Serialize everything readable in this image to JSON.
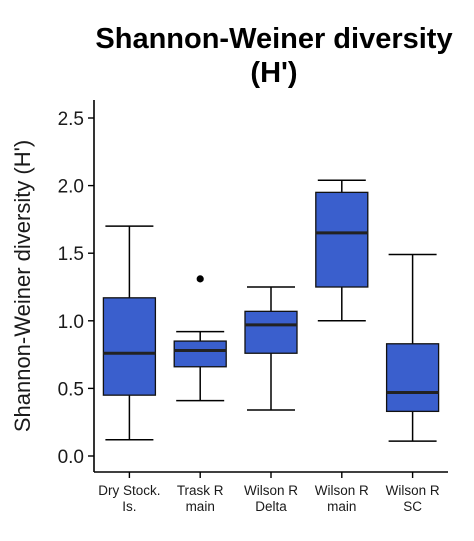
{
  "chart_data": {
    "type": "box",
    "title_lines": [
      "Shannon-Weiner diversity",
      "(H')"
    ],
    "ylabel": "Shannon-Weiner diversity (H')",
    "xlabel": "",
    "ylim": [
      0,
      2.5
    ],
    "yticks": [
      "0.0",
      "0.5",
      "1.0",
      "1.5",
      "2.0",
      "2.5"
    ],
    "box_color": "#3a5fcd",
    "categories": [
      {
        "label_lines": [
          "Dry Stock.",
          "Is."
        ],
        "min": 0.12,
        "q1": 0.45,
        "median": 0.76,
        "q3": 1.17,
        "max": 1.7,
        "outliers": []
      },
      {
        "label_lines": [
          "Trask R",
          "main"
        ],
        "min": 0.41,
        "q1": 0.66,
        "median": 0.78,
        "q3": 0.85,
        "max": 0.92,
        "outliers": [
          1.31
        ]
      },
      {
        "label_lines": [
          "Wilson R",
          "Delta"
        ],
        "min": 0.34,
        "q1": 0.76,
        "median": 0.97,
        "q3": 1.07,
        "max": 1.25,
        "outliers": []
      },
      {
        "label_lines": [
          "Wilson R",
          "main"
        ],
        "min": 1.0,
        "q1": 1.25,
        "median": 1.65,
        "q3": 1.95,
        "max": 2.04,
        "outliers": []
      },
      {
        "label_lines": [
          "Wilson R",
          "SC"
        ],
        "min": 0.11,
        "q1": 0.33,
        "median": 0.47,
        "q3": 0.83,
        "max": 1.49,
        "outliers": []
      }
    ]
  }
}
